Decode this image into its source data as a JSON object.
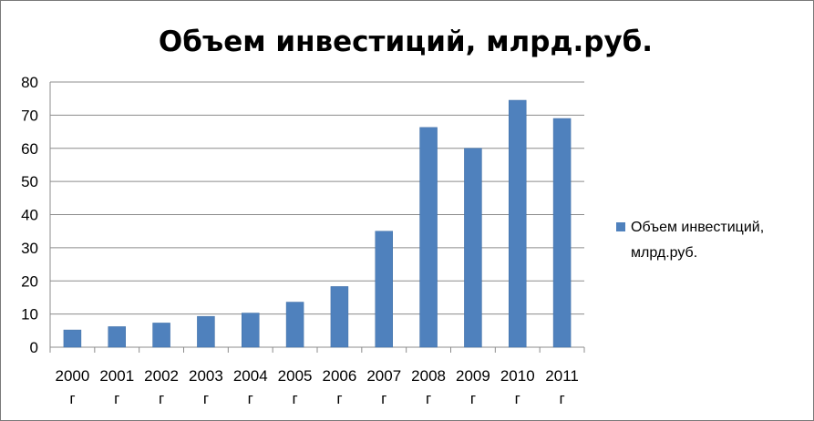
{
  "chart_data": {
    "type": "bar",
    "title": "Объем инвестиций, млрд.руб.",
    "categories": [
      [
        "2000",
        "г"
      ],
      [
        "2001",
        "г"
      ],
      [
        "2002",
        "г"
      ],
      [
        "2003",
        "г"
      ],
      [
        "2004",
        "г"
      ],
      [
        "2005",
        "г"
      ],
      [
        "2006",
        "г"
      ],
      [
        "2007",
        "г"
      ],
      [
        "2008",
        "г"
      ],
      [
        "2009",
        "г"
      ],
      [
        "2010",
        "г"
      ],
      [
        "2011",
        "г"
      ]
    ],
    "series": [
      {
        "name": [
          "Объем инвестиций,",
          "млрд.руб."
        ],
        "color": "#4f81bd",
        "values": [
          5.2,
          6.2,
          7.3,
          9.3,
          10.3,
          13.6,
          18.3,
          35.0,
          66.3,
          60.0,
          74.5,
          69.0
        ]
      }
    ],
    "ylim": [
      0,
      80
    ],
    "yticks": [
      0,
      10,
      20,
      30,
      40,
      50,
      60,
      70,
      80
    ],
    "grid": true,
    "legend_position": "right",
    "xlabel": "",
    "ylabel": ""
  }
}
